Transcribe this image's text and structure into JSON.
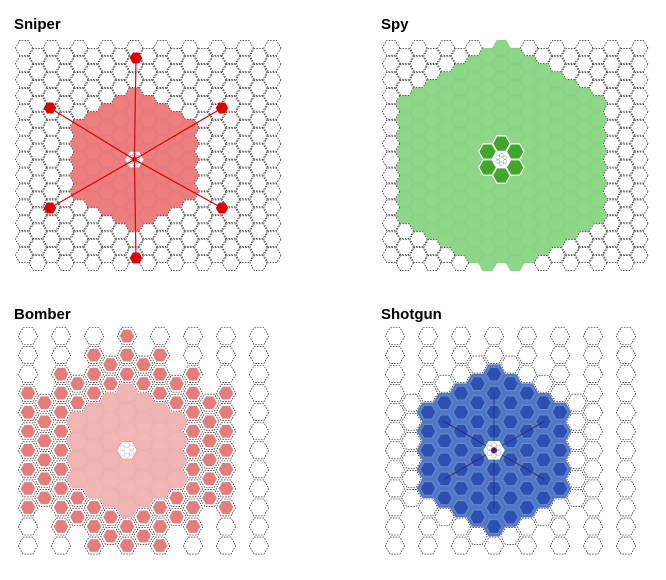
{
  "panels": [
    {
      "id": "sniper",
      "title": "Sniper",
      "accent": "#dc0000",
      "fill": "#ec7777",
      "fill_opacity": 0.95,
      "stroke": "#ffffff"
    },
    {
      "id": "spy",
      "title": "Spy",
      "accent": "#43a62c",
      "fill": "#88d482",
      "fill_opacity": 0.95,
      "stroke": "#ffffff"
    },
    {
      "id": "bomber",
      "title": "Bomber",
      "accent": "#e67d7d",
      "fill": "#f1b1b1",
      "fill_opacity": 0.95,
      "stroke": "#ffffff"
    },
    {
      "id": "shotgun",
      "title": "Shotgun",
      "accent": "#2d50b0",
      "fill": "#4f76c4",
      "fill_opacity": 0.95,
      "stroke": "#6a8ad3"
    }
  ],
  "colors": {
    "grid_stroke": "#000000",
    "center_stroke": "#5a1a6a"
  }
}
